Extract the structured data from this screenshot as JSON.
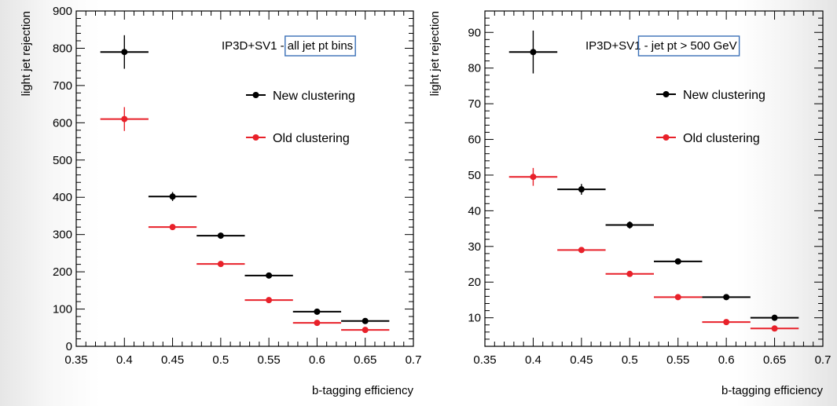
{
  "chart_data": [
    {
      "type": "scatter",
      "title": "",
      "info_prefix": "IP3D+SV1 - ",
      "info_boxed": "all jet pt bins",
      "xlabel": "b-tagging efficiency",
      "ylabel": "light jet rejection",
      "xlim": [
        0.35,
        0.7
      ],
      "ylim": [
        0,
        900
      ],
      "xticks": [
        "0.35",
        "0.4",
        "0.45",
        "0.5",
        "0.55",
        "0.6",
        "0.65",
        "0.7"
      ],
      "yticks": [
        "0",
        "100",
        "200",
        "300",
        "400",
        "500",
        "600",
        "700",
        "800",
        "900"
      ],
      "x_error_halfwidth": 0.025,
      "legend_position": "right",
      "series": [
        {
          "name": "New clustering",
          "color": "#000000",
          "x": [
            0.4,
            0.45,
            0.5,
            0.55,
            0.6,
            0.65
          ],
          "y": [
            790,
            402,
            297,
            190,
            93,
            68
          ],
          "y_err": [
            45,
            12,
            8,
            6,
            8,
            6
          ]
        },
        {
          "name": "Old clustering",
          "color": "#e8212a",
          "x": [
            0.4,
            0.45,
            0.5,
            0.55,
            0.6,
            0.65
          ],
          "y": [
            610,
            320,
            221,
            124,
            63,
            44
          ],
          "y_err": [
            32,
            7,
            6,
            5,
            5,
            4
          ]
        }
      ]
    },
    {
      "type": "scatter",
      "title": "",
      "info_prefix": "IP3D+SV1",
      "info_boxed": " - jet pt > 500 GeV",
      "xlabel": "b-tagging efficiency",
      "ylabel": "light jet rejection",
      "xlim": [
        0.35,
        0.7
      ],
      "ylim": [
        2,
        96
      ],
      "xticks": [
        "0.35",
        "0.4",
        "0.45",
        "0.5",
        "0.55",
        "0.6",
        "0.65",
        "0.7"
      ],
      "yticks": [
        "10",
        "20",
        "30",
        "40",
        "50",
        "60",
        "70",
        "80",
        "90"
      ],
      "x_error_halfwidth": 0.025,
      "legend_position": "right",
      "series": [
        {
          "name": "New clustering",
          "color": "#000000",
          "x": [
            0.4,
            0.45,
            0.5,
            0.55,
            0.6,
            0.65
          ],
          "y": [
            84.5,
            46,
            36,
            25.8,
            15.8,
            10
          ],
          "y_err": [
            6,
            1.5,
            1,
            0.7,
            0.6,
            0.5
          ]
        },
        {
          "name": "Old clustering",
          "color": "#e8212a",
          "x": [
            0.4,
            0.45,
            0.5,
            0.55,
            0.6,
            0.65
          ],
          "y": [
            49.5,
            29,
            22.3,
            15.8,
            8.8,
            7
          ],
          "y_err": [
            2.5,
            0.8,
            0.6,
            0.5,
            0.5,
            0.4
          ]
        }
      ]
    }
  ]
}
